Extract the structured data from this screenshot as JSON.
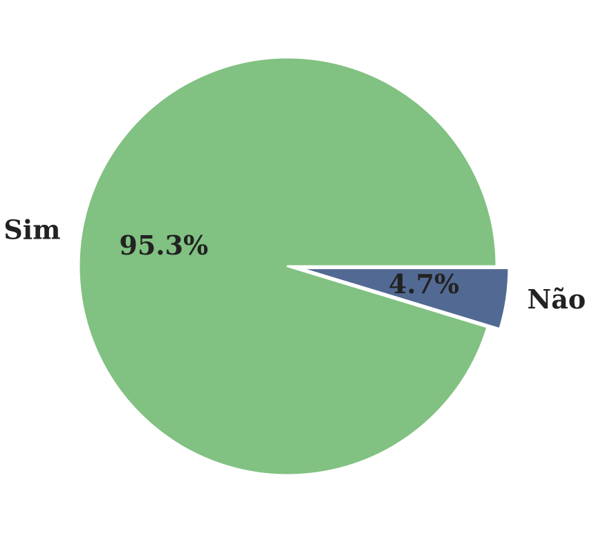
{
  "chart_data": {
    "type": "pie",
    "categories": [
      "Sim",
      "Não"
    ],
    "values": [
      95.3,
      4.7
    ],
    "value_labels": [
      "95.3%",
      "4.7%"
    ],
    "colors": [
      "#81c182",
      "#526a93"
    ],
    "exploded": [
      false,
      true
    ],
    "start_angle_deg": 0,
    "direction": "counterclockwise",
    "title": ""
  }
}
